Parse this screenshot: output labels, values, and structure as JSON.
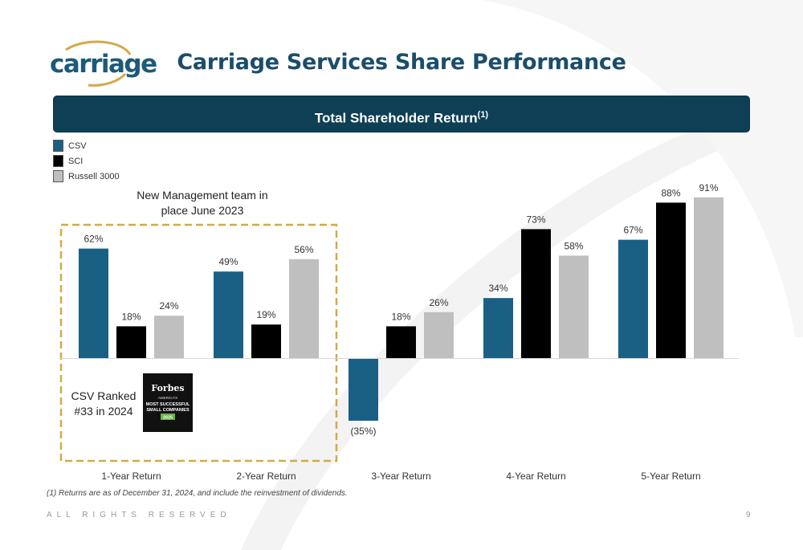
{
  "header": {
    "logo_text": "carriage",
    "title": "Carriage Services Share Performance"
  },
  "banner": {
    "title": "Total Shareholder Return",
    "note_marker": "(1)"
  },
  "colors": {
    "csv": "#1a5f84",
    "sci": "#000000",
    "russell": "#bfbfbf",
    "dash_box": "#d4a94a"
  },
  "annotations": {
    "management_note": "New Management team in place June 2023",
    "ranked_line1": "CSV Ranked",
    "ranked_line2": "#33 in 2024",
    "badge_title": "Forbes",
    "badge_line1": "AMERICA'S",
    "badge_line2": "MOST SUCCESSFUL",
    "badge_line3": "SMALL COMPANIES",
    "badge_year": "2025"
  },
  "chart_data": {
    "type": "bar",
    "categories": [
      "1-Year Return",
      "2-Year Return",
      "3-Year Return",
      "4-Year Return",
      "5-Year Return"
    ],
    "series": [
      {
        "name": "CSV",
        "values": [
          62,
          49,
          -35,
          34,
          67
        ],
        "labels": [
          "62%",
          "49%",
          "(35%)",
          "34%",
          "67%"
        ]
      },
      {
        "name": "SCI",
        "values": [
          18,
          19,
          18,
          73,
          88
        ],
        "labels": [
          "18%",
          "19%",
          "18%",
          "73%",
          "88%"
        ]
      },
      {
        "name": "Russell 3000",
        "values": [
          24,
          56,
          26,
          58,
          91
        ],
        "labels": [
          "24%",
          "56%",
          "26%",
          "58%",
          "91%"
        ]
      }
    ],
    "legend_position": "top-left",
    "grid": false
  },
  "footer": {
    "footnote": "(1)   Returns are as of December 31, 2024, and include the reinvestment of dividends.",
    "rights": "ALL RIGHTS RESERVED",
    "page_number": "9"
  }
}
